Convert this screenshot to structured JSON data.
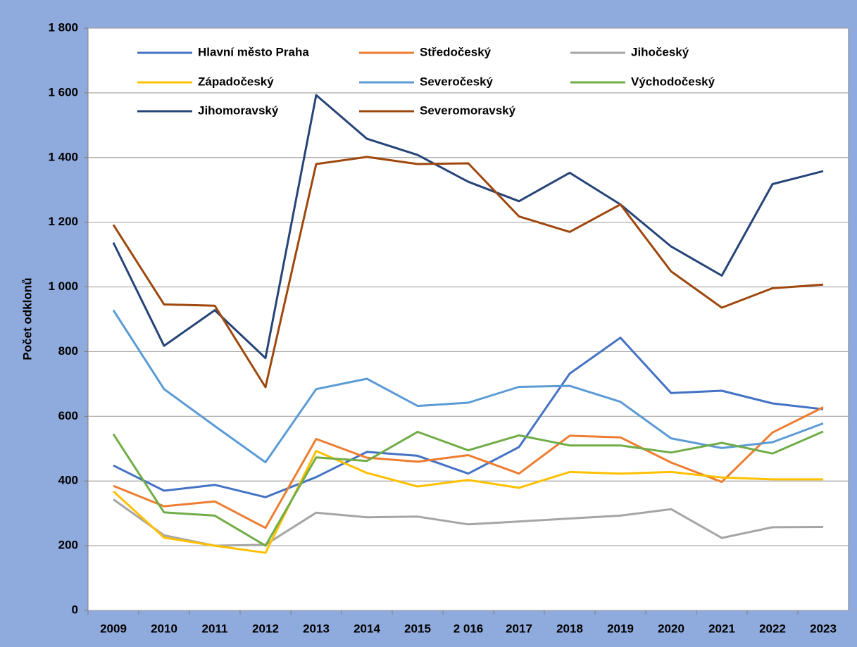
{
  "chart_data": {
    "type": "line",
    "y_label": "Počet odklonů",
    "categories": [
      "2009",
      "2010",
      "2011",
      "2012",
      "2013",
      "2014",
      "2015",
      "2 016",
      "2017",
      "2018",
      "2019",
      "2020",
      "2021",
      "2022",
      "2023"
    ],
    "series": [
      {
        "name": "Hlavní město Praha",
        "color": "#4472c4",
        "values": [
          448,
          370,
          388,
          350,
          412,
          490,
          478,
          423,
          505,
          732,
          843,
          672,
          679,
          640,
          622
        ]
      },
      {
        "name": "Středočeský",
        "color": "#ed7d31",
        "values": [
          385,
          322,
          337,
          255,
          530,
          472,
          460,
          480,
          423,
          540,
          535,
          457,
          397,
          550,
          628
        ]
      },
      {
        "name": "Jihočeský",
        "color": "#a5a5a5",
        "values": [
          343,
          232,
          200,
          203,
          302,
          288,
          290,
          266,
          275,
          284,
          293,
          313,
          224,
          257,
          258
        ]
      },
      {
        "name": "Západočeský",
        "color": "#ffc000",
        "values": [
          368,
          225,
          200,
          178,
          493,
          425,
          383,
          403,
          379,
          428,
          423,
          428,
          411,
          405,
          405
        ]
      },
      {
        "name": "Severočeský",
        "color": "#5b9bd5",
        "values": [
          928,
          684,
          570,
          458,
          684,
          716,
          632,
          642,
          691,
          694,
          645,
          532,
          502,
          520,
          578
        ]
      },
      {
        "name": "Východočeský",
        "color": "#70ad47",
        "values": [
          545,
          303,
          293,
          200,
          473,
          462,
          552,
          495,
          541,
          510,
          510,
          488,
          518,
          485,
          553
        ]
      },
      {
        "name": "Jihomoravský",
        "color": "#264478",
        "values": [
          1137,
          818,
          928,
          780,
          1593,
          1458,
          1408,
          1325,
          1265,
          1353,
          1255,
          1125,
          1035,
          1318,
          1358
        ]
      },
      {
        "name": "Severomoravský",
        "color": "#9e480e",
        "values": [
          1192,
          946,
          942,
          690,
          1380,
          1402,
          1380,
          1382,
          1218,
          1170,
          1255,
          1048,
          936,
          996,
          1007
        ]
      }
    ],
    "ylim": [
      0,
      1800
    ],
    "yticks": [
      0,
      200,
      400,
      600,
      800,
      {
        "value": 1000,
        "label": "1 000"
      },
      {
        "value": 1200,
        "label": "1 200"
      },
      {
        "value": 1400,
        "label": "1 400"
      },
      {
        "value": 1600,
        "label": "1 600"
      },
      {
        "value": 1800,
        "label": "1 800"
      }
    ],
    "grid": true
  }
}
